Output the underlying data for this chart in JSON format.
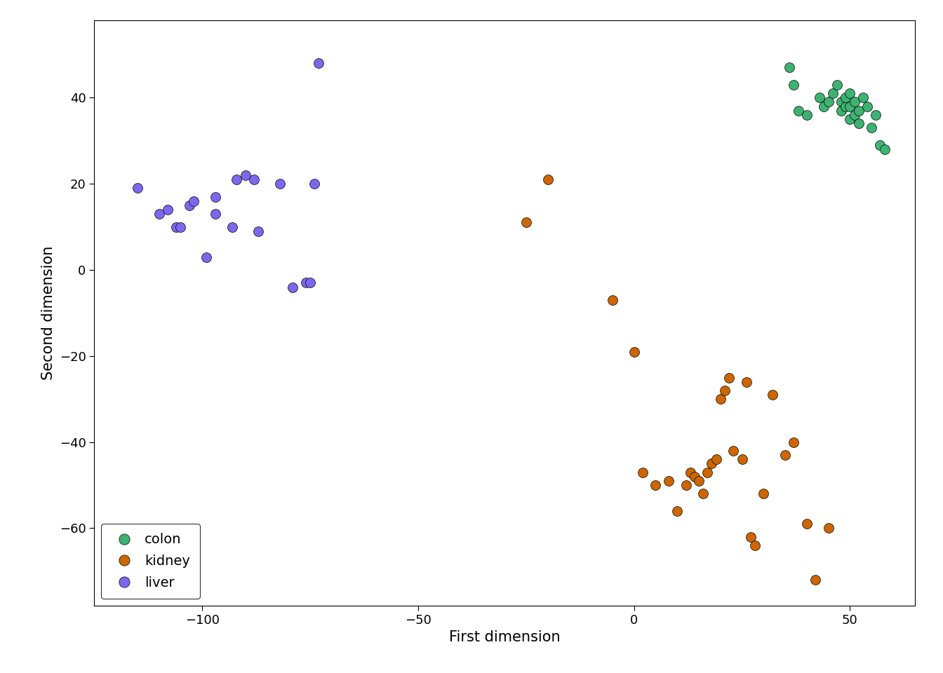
{
  "colon": {
    "x": [
      36,
      37,
      38,
      40,
      43,
      44,
      45,
      46,
      47,
      48,
      48,
      49,
      49,
      50,
      50,
      50,
      51,
      51,
      52,
      52,
      53,
      54,
      55,
      56,
      57,
      58
    ],
    "y": [
      47,
      43,
      37,
      36,
      40,
      38,
      39,
      41,
      43,
      37,
      39,
      38,
      40,
      35,
      38,
      41,
      36,
      39,
      34,
      37,
      40,
      38,
      33,
      36,
      29,
      28
    ],
    "color": "#3CB371"
  },
  "kidney": {
    "x": [
      -25,
      -20,
      -5,
      0,
      2,
      5,
      8,
      10,
      12,
      13,
      14,
      15,
      16,
      17,
      18,
      19,
      20,
      21,
      22,
      23,
      25,
      26,
      27,
      28,
      30,
      32,
      35,
      37,
      40,
      42,
      45
    ],
    "y": [
      11,
      21,
      -7,
      -19,
      -47,
      -50,
      -49,
      -56,
      -50,
      -47,
      -48,
      -49,
      -52,
      -47,
      -45,
      -44,
      -30,
      -28,
      -25,
      -42,
      -44,
      -26,
      -62,
      -64,
      -52,
      -29,
      -43,
      -40,
      -59,
      -72,
      -60
    ],
    "color": "#CD6600"
  },
  "liver": {
    "x": [
      -115,
      -110,
      -108,
      -106,
      -105,
      -103,
      -102,
      -99,
      -97,
      -97,
      -93,
      -92,
      -90,
      -88,
      -87,
      -82,
      -79,
      -76,
      -75,
      -74,
      -73
    ],
    "y": [
      19,
      13,
      14,
      10,
      10,
      15,
      16,
      3,
      13,
      17,
      10,
      21,
      22,
      21,
      9,
      20,
      -4,
      -3,
      -3,
      20,
      48
    ],
    "color": "#7B68EE"
  },
  "xlabel": "First dimension",
  "ylabel": "Second dimension",
  "xlim": [
    -125,
    65
  ],
  "ylim": [
    -78,
    58
  ],
  "xticks": [
    -100,
    -50,
    0,
    50
  ],
  "yticks": [
    -60,
    -40,
    -20,
    0,
    20,
    40
  ],
  "legend_labels": [
    "colon",
    "kidney",
    "liver"
  ],
  "legend_colors": [
    "#3CB371",
    "#CD6600",
    "#7B68EE"
  ],
  "background_color": "#FFFFFF",
  "marker_size": 100,
  "xlabel_fontsize": 15,
  "ylabel_fontsize": 15,
  "tick_fontsize": 13
}
